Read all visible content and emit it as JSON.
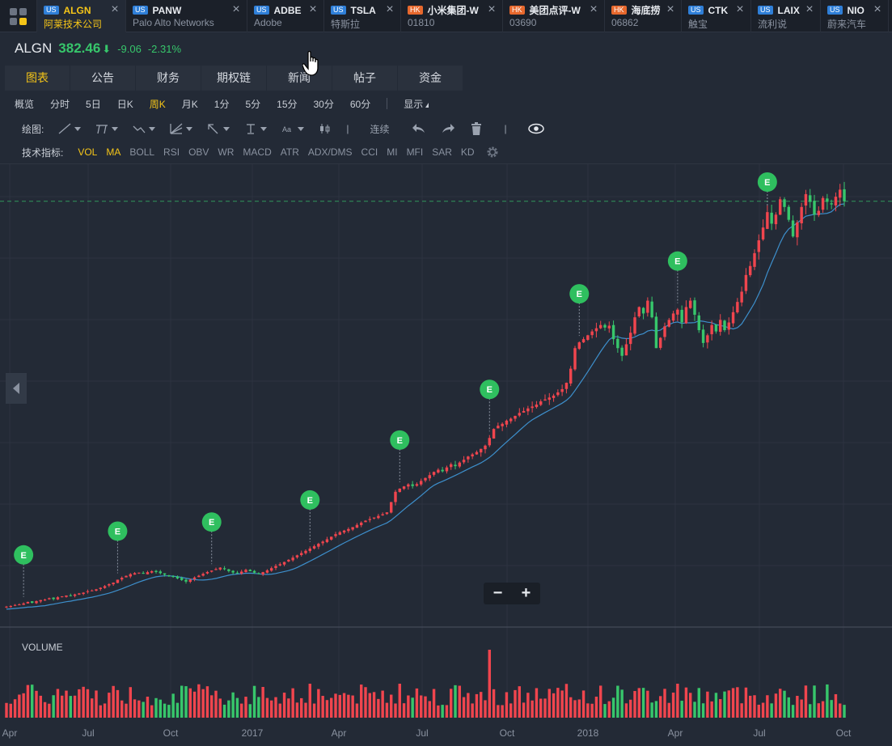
{
  "tabs": [
    {
      "market": "US",
      "code": "ALGN",
      "name": "阿莱技术公司",
      "active": true,
      "w": 110
    },
    {
      "market": "US",
      "code": "PANW",
      "name": "Palo Alto Networks",
      "active": false,
      "w": 150
    },
    {
      "market": "US",
      "code": "ADBE",
      "name": "Adobe",
      "active": false,
      "w": 95
    },
    {
      "market": "US",
      "code": "TSLA",
      "name": "特斯拉",
      "active": false,
      "w": 95
    },
    {
      "market": "HK",
      "code": "小米集团-W",
      "name": "01810",
      "active": false,
      "w": 126
    },
    {
      "market": "HK",
      "code": "美团点评-W",
      "name": "03690",
      "active": false,
      "w": 126
    },
    {
      "market": "HK",
      "code": "海底捞",
      "name": "06862",
      "active": false,
      "w": 95
    },
    {
      "market": "US",
      "code": "CTK",
      "name": "触宝",
      "active": false,
      "w": 86
    },
    {
      "market": "US",
      "code": "LAIX",
      "name": "流利说",
      "active": false,
      "w": 86
    },
    {
      "market": "US",
      "code": "NIO",
      "name": "蔚来汽车",
      "active": false,
      "w": 84
    }
  ],
  "quote": {
    "symbol": "ALGN",
    "price": "382.46",
    "arrow": "⬇",
    "change": "-9.06",
    "change_pct": "-2.31%"
  },
  "main_tabs": [
    "图表",
    "公告",
    "财务",
    "期权链",
    "新闻",
    "帖子",
    "资金"
  ],
  "main_tab_active": 0,
  "periods": [
    "概览",
    "分时",
    "5日",
    "日K",
    "周K",
    "月K",
    "1分",
    "5分",
    "15分",
    "30分",
    "60分"
  ],
  "period_active": 4,
  "display_label": "显示",
  "draw_label": "绘图:",
  "continuous_label": "连续",
  "indicator_label": "技术指标:",
  "indicators": [
    "VOL",
    "MA",
    "BOLL",
    "RSI",
    "OBV",
    "WR",
    "MACD",
    "ATR",
    "ADX/DMS",
    "CCI",
    "MI",
    "MFI",
    "SAR",
    "KD"
  ],
  "indicators_active": [
    "VOL",
    "MA"
  ],
  "volume_label": "VOLUME",
  "zoom": {
    "minus": "−",
    "plus": "+"
  },
  "colors": {
    "up": "#f0454e",
    "down": "#37c66b",
    "ma": "#3d8fcc",
    "accent": "#f5c518",
    "earnings": "#2fbf5f"
  },
  "chart_data": {
    "type": "candlestick",
    "x_ticks": [
      "Apr",
      "Jul",
      "Oct",
      "2017",
      "Apr",
      "Jul",
      "Oct",
      "2018",
      "Apr",
      "Jul",
      "Oct"
    ],
    "earnings_marker": "E",
    "earnings_weeks": [
      4,
      26,
      48,
      71,
      92,
      113,
      134,
      157,
      178
    ],
    "last_price": 382.46,
    "weekly_close": [
      66.5,
      67.0,
      67.8,
      68.2,
      69.0,
      70.2,
      69.5,
      70.8,
      71.6,
      72.0,
      73.1,
      72.4,
      73.8,
      74.5,
      75.2,
      74.9,
      76.0,
      76.8,
      77.4,
      78.5,
      79.1,
      80.0,
      81.2,
      82.5,
      84.0,
      85.2,
      87.5,
      89.0,
      90.5,
      91.8,
      92.6,
      93.0,
      92.2,
      93.4,
      94.1,
      93.5,
      92.6,
      91.4,
      90.2,
      89.6,
      88.5,
      87.3,
      86.0,
      87.5,
      89.2,
      90.6,
      92.1,
      93.5,
      94.6,
      95.8,
      96.9,
      95.7,
      94.2,
      93.1,
      92.4,
      93.8,
      95.2,
      94.1,
      93.0,
      92.1,
      93.4,
      94.8,
      96.5,
      98.2,
      99.6,
      101.3,
      103.0,
      104.7,
      106.5,
      108.3,
      110.0,
      111.8,
      113.6,
      115.5,
      117.2,
      119.0,
      121.0,
      123.0,
      124.5,
      125.8,
      127.0,
      128.5,
      130.2,
      132.0,
      133.5,
      134.8,
      136.0,
      137.2,
      138.5,
      140.0,
      148.0,
      156.0,
      158.5,
      160.2,
      161.8,
      160.5,
      162.0,
      164.5,
      166.8,
      169.0,
      171.5,
      173.2,
      172.0,
      175.0,
      177.5,
      176.0,
      178.8,
      181.0,
      183.5,
      185.2,
      187.0,
      189.5,
      192.0,
      198.0,
      205.0,
      207.5,
      209.0,
      211.5,
      213.0,
      215.2,
      217.5,
      219.0,
      221.0,
      222.5,
      224.0,
      226.5,
      228.0,
      229.5,
      231.0,
      233.5,
      236.0,
      241.0,
      252.0,
      268.0,
      272.5,
      275.0,
      278.0,
      281.0,
      283.5,
      286.0,
      284.0,
      285.5,
      275.0,
      268.0,
      262.0,
      271.0,
      280.0,
      292.0,
      300.0,
      295.0,
      305.0,
      292.0,
      268.0,
      276.0,
      285.0,
      290.0,
      295.0,
      298.0,
      288.0,
      300.0,
      305.0,
      294.0,
      282.0,
      272.0,
      278.0,
      286.0,
      281.0,
      290.0,
      282.0,
      288.0,
      296.0,
      304.0,
      312.0,
      325.0,
      332.0,
      342.0,
      352.0,
      362.0,
      374.0,
      365.0,
      372.0,
      384.0,
      378.0,
      368.0,
      355.0,
      366.0,
      378.0,
      388.0,
      382.0,
      372.0,
      375.0,
      385.0,
      382.0,
      380.0,
      386.0,
      391.5,
      382.46
    ]
  }
}
